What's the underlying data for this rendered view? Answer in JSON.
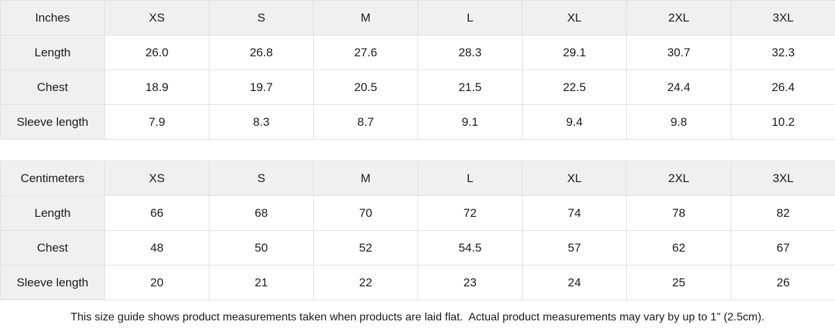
{
  "colors": {
    "header_bg": "#f0f0f0",
    "grid_border": "#e0e0e0",
    "text": "#1a1a1a",
    "page_bg": "#ffffff"
  },
  "tables": [
    {
      "unit_label": "Inches",
      "columns": [
        "XS",
        "S",
        "M",
        "L",
        "XL",
        "2XL",
        "3XL"
      ],
      "rows": [
        {
          "label": "Length",
          "values": [
            "26.0",
            "26.8",
            "27.6",
            "28.3",
            "29.1",
            "30.7",
            "32.3"
          ]
        },
        {
          "label": "Chest",
          "values": [
            "18.9",
            "19.7",
            "20.5",
            "21.5",
            "22.5",
            "24.4",
            "26.4"
          ]
        },
        {
          "label": "Sleeve length",
          "values": [
            "7.9",
            "8.3",
            "8.7",
            "9.1",
            "9.4",
            "9.8",
            "10.2"
          ]
        }
      ]
    },
    {
      "unit_label": "Centimeters",
      "columns": [
        "XS",
        "S",
        "M",
        "L",
        "XL",
        "2XL",
        "3XL"
      ],
      "rows": [
        {
          "label": "Length",
          "values": [
            "66",
            "68",
            "70",
            "72",
            "74",
            "78",
            "82"
          ]
        },
        {
          "label": "Chest",
          "values": [
            "48",
            "50",
            "52",
            "54.5",
            "57",
            "62",
            "67"
          ]
        },
        {
          "label": "Sleeve length",
          "values": [
            "20",
            "21",
            "22",
            "23",
            "24",
            "25",
            "26"
          ]
        }
      ]
    }
  ],
  "footer": {
    "note": "This size guide shows product measurements taken when products are laid flat.  Actual product measurements may vary by up to 1\" (2.5cm)."
  }
}
